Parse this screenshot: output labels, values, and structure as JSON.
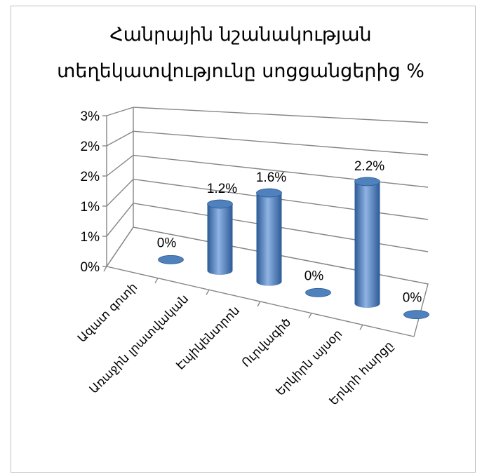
{
  "chart_data": {
    "type": "bar",
    "title_lines": [
      "Հանրային նշանակության",
      "տեղեկատվությունը սոցցանցերից %"
    ],
    "y_tick_labels": [
      "0%",
      "1%",
      "1%",
      "2%",
      "2%",
      "3%"
    ],
    "ylim": [
      0,
      2.5
    ],
    "grid": true,
    "legend": "none",
    "categories": [
      "Ազատ գոտի",
      "Առաջին լրատվական",
      "Էպիկենտրոն",
      "Ուրվագիծ",
      "Երկիրն այսօր",
      "Երկրի հարցը"
    ],
    "values": [
      0,
      1.2,
      1.6,
      0,
      2.2,
      0
    ],
    "value_labels": [
      "0%",
      "1.2%",
      "1.6%",
      "0%",
      "2.2%",
      "0%"
    ],
    "bar_color": "#4F81BD",
    "bar_dark": "#2C5A96",
    "bar_light": "#8FB3E3"
  }
}
